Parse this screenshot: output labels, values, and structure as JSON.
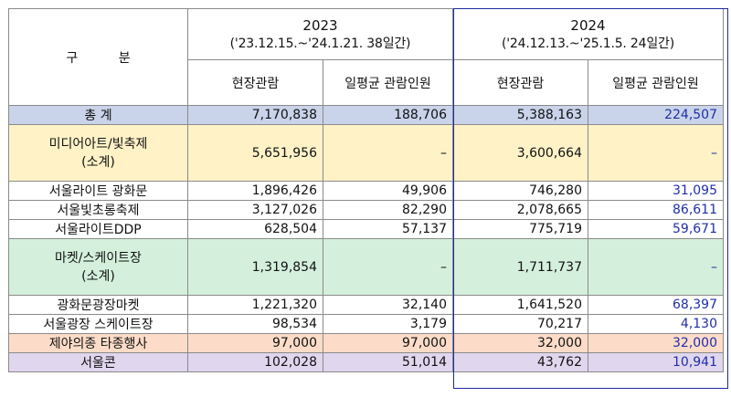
{
  "header": {
    "gubun": "구 분",
    "y2023": "2023",
    "p2023": "('23.12.15.~'24.1.21. 38일간)",
    "y2024": "2024",
    "p2024": "('24.12.13.~'25.1.5. 24일간)",
    "c_onsite": "현장관람",
    "c_daily": "일평균 관람인원"
  },
  "rows": {
    "total": {
      "name": "총 계",
      "a": "7,170,838",
      "b": "188,706",
      "c": "5,388,163",
      "d": "224,507"
    },
    "media": {
      "name1": "미디어아트/빛축제",
      "name2": "(소계)",
      "a": "5,651,956",
      "b": "–",
      "c": "3,600,664",
      "d": "–"
    },
    "gwanghwamun": {
      "name": "서울라이트 광화문",
      "a": "1,896,426",
      "b": "49,906",
      "c": "746,280",
      "d": "31,095"
    },
    "chorong": {
      "name": "서울빛초롱축제",
      "a": "3,127,026",
      "b": "82,290",
      "c": "2,078,665",
      "d": "86,611"
    },
    "ddp": {
      "name": "서울라이트DDP",
      "a": "628,504",
      "b": "57,137",
      "c": "775,719",
      "d": "59,671"
    },
    "market": {
      "name1": "마켓/스케이트장",
      "name2": "(소계)",
      "a": "1,319,854",
      "b": "–",
      "c": "1,711,737",
      "d": "–"
    },
    "gmarket": {
      "name": "광화문광장마켓",
      "a": "1,221,320",
      "b": "32,140",
      "c": "1,641,520",
      "d": "68,397"
    },
    "skate": {
      "name": "서울광장 스케이트장",
      "a": "98,534",
      "b": "3,179",
      "c": "70,217",
      "d": "4,130"
    },
    "bell": {
      "name": "제야의종 타종행사",
      "a": "97,000",
      "b": "97,000",
      "c": "32,000",
      "d": "32,000"
    },
    "con": {
      "name": "서울콘",
      "a": "102,028",
      "b": "51,014",
      "c": "43,762",
      "d": "10,941"
    }
  }
}
